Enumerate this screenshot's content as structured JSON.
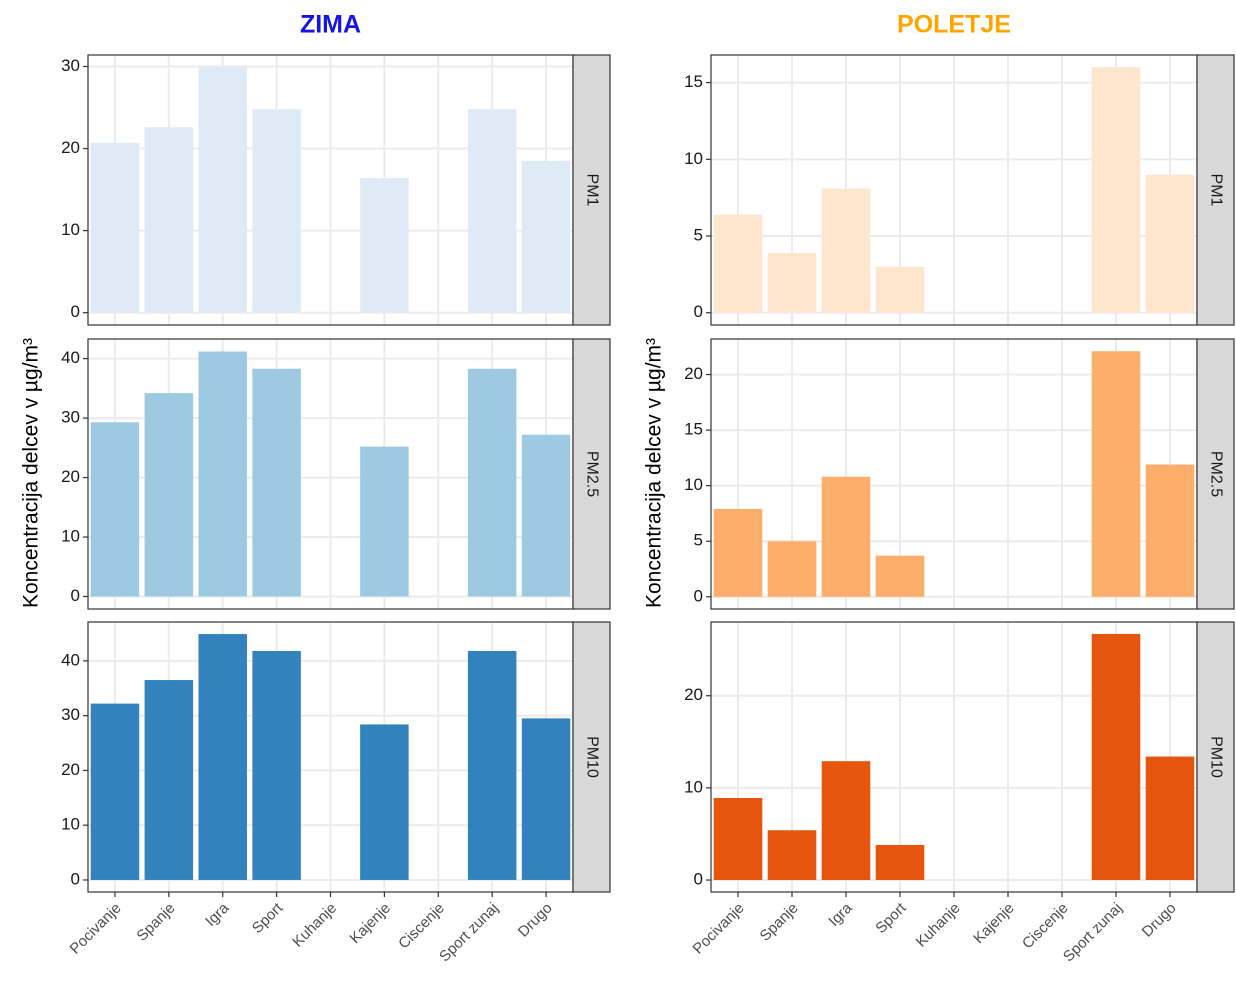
{
  "chart_data": [
    {
      "type": "bar",
      "title": "ZIMA",
      "title_color": "#1414e6",
      "ylabel": "Koncentracija delcev v µg/m³",
      "grid": true,
      "categories": [
        "Pocivanje",
        "Spanje",
        "Igra",
        "Sport",
        "Kuhanje",
        "Kajenje",
        "Ciscenje",
        "Sport zunaj",
        "Drugo"
      ],
      "facets": [
        {
          "label": "PM1",
          "color": "#deebf7",
          "values": [
            20.7,
            22.6,
            29.9,
            24.8,
            null,
            16.4,
            null,
            24.8,
            18.5
          ],
          "ylim": [
            -1.5,
            31.4
          ],
          "yticks": [
            0,
            10,
            20,
            30
          ]
        },
        {
          "label": "PM2.5",
          "color": "#9ecae1",
          "values": [
            29.3,
            34.2,
            41.2,
            38.3,
            null,
            25.2,
            null,
            38.3,
            27.2
          ],
          "ylim": [
            -2.1,
            43.3
          ],
          "yticks": [
            0,
            10,
            20,
            30,
            40
          ]
        },
        {
          "label": "PM10",
          "color": "#3182bd",
          "values": [
            32.2,
            36.5,
            44.9,
            41.8,
            null,
            28.4,
            null,
            41.8,
            29.5
          ],
          "ylim": [
            -2.2,
            47.1
          ],
          "yticks": [
            0,
            10,
            20,
            30,
            40
          ]
        }
      ]
    },
    {
      "type": "bar",
      "title": "POLETJE",
      "title_color": "#ffa500",
      "ylabel": "Koncentracija delcev v µg/m³",
      "grid": true,
      "categories": [
        "Pocivanje",
        "Spanje",
        "Igra",
        "Sport",
        "Kuhanje",
        "Kajenje",
        "Ciscenje",
        "Sport zunaj",
        "Drugo"
      ],
      "facets": [
        {
          "label": "PM1",
          "color": "#fee6ce",
          "values": [
            6.4,
            3.9,
            8.1,
            3.0,
            null,
            null,
            null,
            16.0,
            9.0
          ],
          "ylim": [
            -0.8,
            16.8
          ],
          "yticks": [
            0,
            5,
            10,
            15
          ]
        },
        {
          "label": "PM2.5",
          "color": "#fdae6b",
          "values": [
            7.9,
            5.0,
            10.8,
            3.7,
            null,
            null,
            null,
            22.1,
            11.9
          ],
          "ylim": [
            -1.1,
            23.2
          ],
          "yticks": [
            0,
            5,
            10,
            15,
            20
          ]
        },
        {
          "label": "PM10",
          "color": "#e6550d",
          "values": [
            8.9,
            5.4,
            12.9,
            3.8,
            null,
            null,
            null,
            26.7,
            13.4
          ],
          "ylim": [
            -1.3,
            28.0
          ],
          "yticks": [
            0,
            10,
            20
          ]
        }
      ]
    }
  ]
}
